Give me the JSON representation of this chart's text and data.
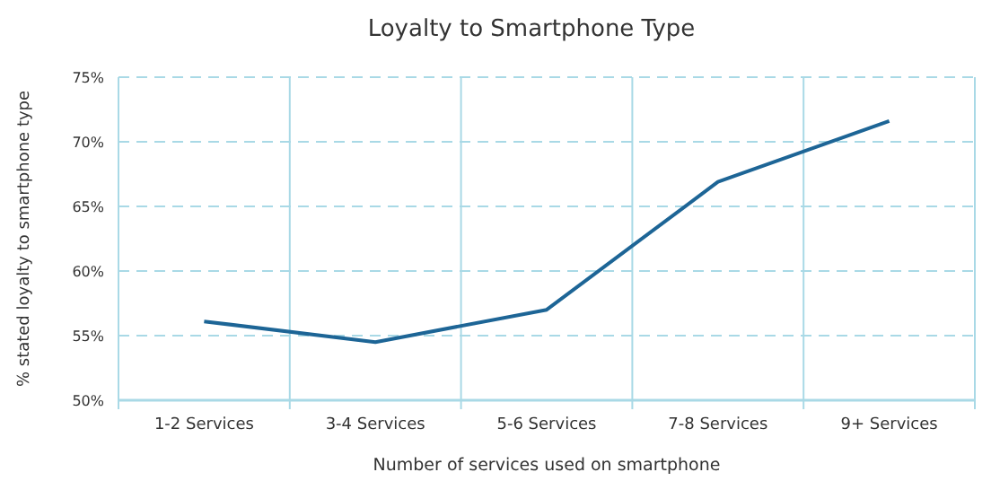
{
  "chart_data": {
    "type": "line",
    "title": "Loyalty to Smartphone Type",
    "xlabel": "Number of services used on smartphone",
    "ylabel": "% stated loyalty to smartphone type",
    "categories": [
      "1-2 Services",
      "3-4 Services",
      "5-6 Services",
      "7-8 Services",
      "9+ Services"
    ],
    "series": [
      {
        "color": "#1d6596",
        "values": [
          56.1,
          54.5,
          57.0,
          66.9,
          71.6
        ]
      }
    ],
    "ylim": [
      50,
      75
    ],
    "yticks": [
      {
        "value": 50,
        "label": "50%"
      },
      {
        "value": 55,
        "label": "55%"
      },
      {
        "value": 60,
        "label": "60%"
      },
      {
        "value": 65,
        "label": "65%"
      },
      {
        "value": 70,
        "label": "70%"
      },
      {
        "value": 75,
        "label": "75%"
      }
    ],
    "grid": true,
    "marker": "none",
    "line_style": "solid"
  }
}
